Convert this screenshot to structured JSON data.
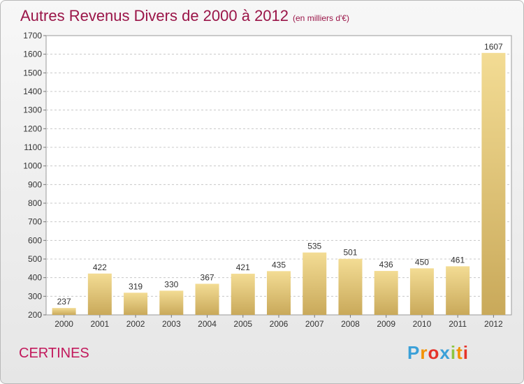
{
  "page": {
    "title": "Autres Revenus Divers de 2000 à 2012",
    "unit": "(en milliers d'€)",
    "place": "CERTINES",
    "logo": {
      "text": "Proxiti",
      "colors": [
        "#3aa0d8",
        "#f39200",
        "#e5332a",
        "#3aa0d8",
        "#8cc63f",
        "#f39200",
        "#e5332a"
      ]
    }
  },
  "chart_data": {
    "type": "bar",
    "title": "Autres Revenus Divers de 2000 à 2012",
    "subtitle": "(en milliers d'€)",
    "xlabel": "",
    "ylabel": "",
    "categories": [
      "2000",
      "2001",
      "2002",
      "2003",
      "2004",
      "2005",
      "2006",
      "2007",
      "2008",
      "2009",
      "2010",
      "2011",
      "2012"
    ],
    "values": [
      237,
      422,
      319,
      330,
      367,
      421,
      435,
      535,
      501,
      436,
      450,
      461,
      1607
    ],
    "ylim": [
      200,
      1700
    ],
    "yticks": [
      200,
      300,
      400,
      500,
      600,
      700,
      800,
      900,
      1000,
      1100,
      1200,
      1300,
      1400,
      1500,
      1600,
      1700
    ],
    "grid": true,
    "legend": "none",
    "bar_color_top": "#f3dc94",
    "bar_color_bottom": "#c9a95a"
  }
}
